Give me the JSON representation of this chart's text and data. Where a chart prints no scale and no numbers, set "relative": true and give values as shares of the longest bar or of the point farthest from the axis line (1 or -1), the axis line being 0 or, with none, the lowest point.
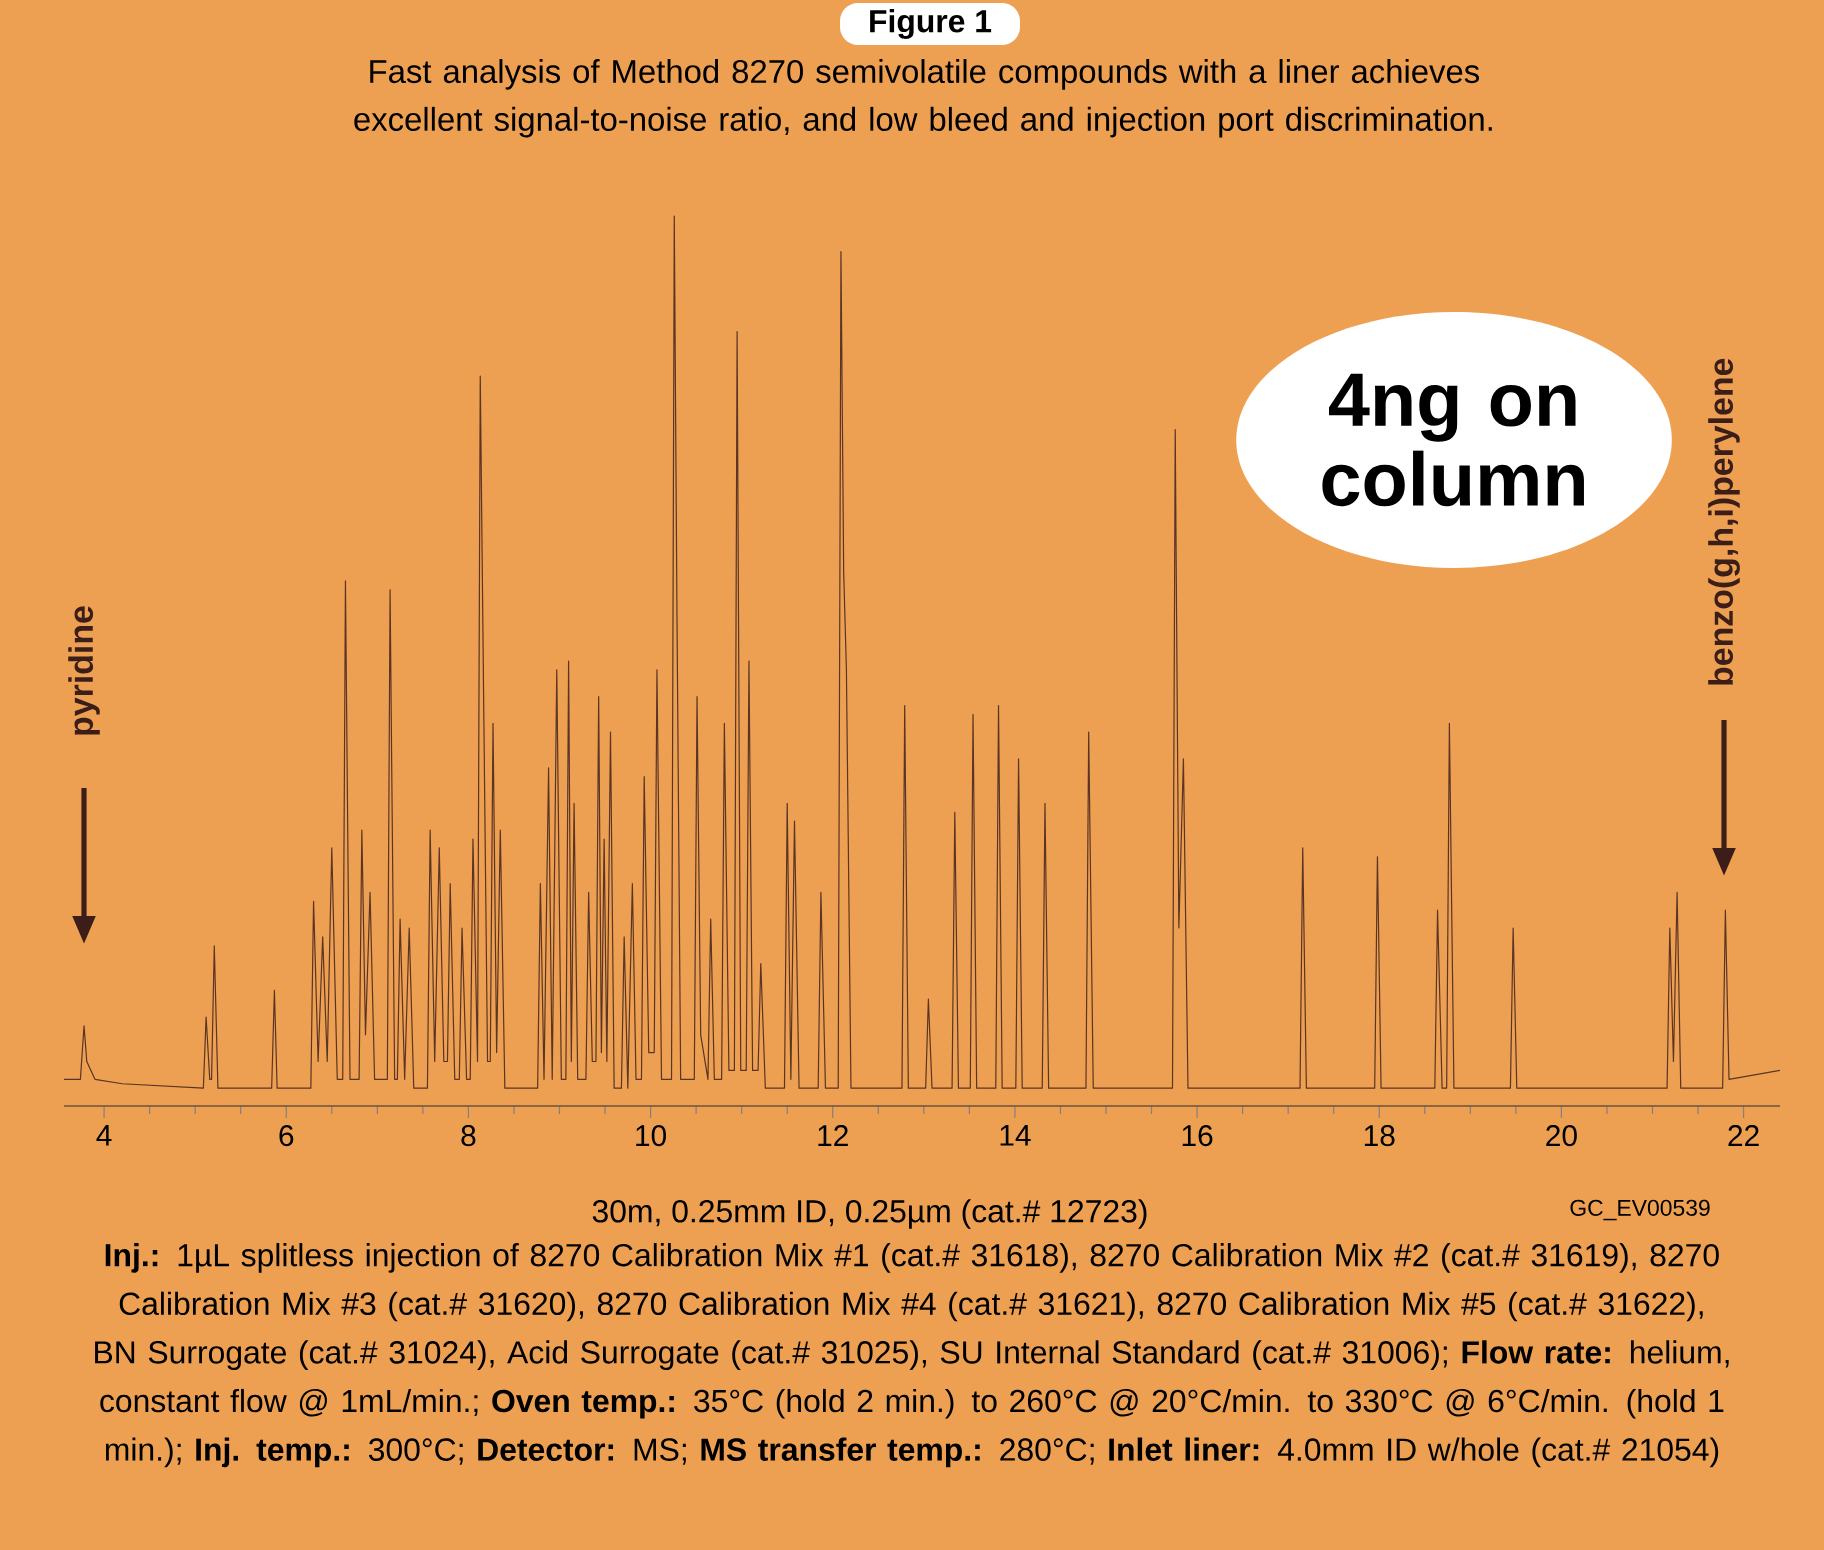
{
  "chart_data": {
    "type": "line",
    "relative": true,
    "title": "Figure 1",
    "subtitle": "Fast analysis of Method 8270 semivolatile compounds with a liner achieves excellent signal-to-noise ratio, and low bleed and injection port discrimination.",
    "xlim": [
      3.56,
      22.4
    ],
    "xticks": [
      4,
      6,
      8,
      10,
      12,
      14,
      16,
      18,
      20,
      22
    ],
    "grid": false,
    "marker": "none",
    "line_style": "solid",
    "x": [
      3.56,
      3.74,
      3.78,
      3.81,
      3.9,
      4.2,
      5.09,
      5.12,
      5.16,
      5.18,
      5.21,
      5.25,
      5.84,
      5.87,
      5.9,
      6.27,
      6.3,
      6.35,
      6.4,
      6.45,
      6.5,
      6.56,
      6.62,
      6.65,
      6.7,
      6.8,
      6.83,
      6.87,
      6.92,
      6.97,
      7.11,
      7.14,
      7.19,
      7.22,
      7.25,
      7.3,
      7.35,
      7.4,
      7.55,
      7.58,
      7.63,
      7.68,
      7.73,
      7.77,
      7.8,
      7.85,
      7.9,
      7.93,
      7.98,
      8.02,
      8.05,
      8.1,
      8.13,
      8.17,
      8.21,
      8.24,
      8.27,
      8.31,
      8.35,
      8.4,
      8.76,
      8.79,
      8.83,
      8.88,
      8.92,
      8.97,
      9.02,
      9.07,
      9.1,
      9.13,
      9.16,
      9.2,
      9.29,
      9.32,
      9.36,
      9.4,
      9.43,
      9.46,
      9.49,
      9.52,
      9.56,
      9.6,
      9.68,
      9.71,
      9.75,
      9.8,
      9.84,
      9.9,
      9.93,
      9.98,
      10.04,
      10.07,
      10.12,
      10.23,
      10.26,
      10.29,
      10.33,
      10.48,
      10.51,
      10.55,
      10.63,
      10.66,
      10.7,
      10.78,
      10.81,
      10.86,
      10.92,
      10.95,
      10.99,
      11.05,
      11.08,
      11.12,
      11.18,
      11.21,
      11.26,
      11.47,
      11.5,
      11.54,
      11.58,
      11.63,
      11.84,
      11.87,
      11.92,
      12.06,
      12.09,
      12.12,
      12.15,
      12.2,
      12.76,
      12.79,
      12.83,
      13.02,
      13.05,
      13.09,
      13.31,
      13.34,
      13.38,
      13.51,
      13.54,
      13.58,
      13.79,
      13.82,
      13.86,
      14.01,
      14.04,
      14.08,
      14.3,
      14.33,
      14.37,
      14.78,
      14.81,
      14.86,
      15.73,
      15.76,
      15.8,
      15.85,
      15.9,
      17.13,
      17.16,
      17.2,
      17.95,
      17.98,
      18.02,
      18.61,
      18.64,
      18.69,
      18.74,
      18.77,
      18.82,
      19.44,
      19.47,
      19.51,
      21.16,
      21.19,
      21.23,
      21.27,
      21.31,
      21.77,
      21.8,
      21.84,
      22.4
    ],
    "series": [
      {
        "color": "#5a3424",
        "values": [
          0.03,
          0.03,
          0.09,
          0.05,
          0.03,
          0.025,
          0.02,
          0.1,
          0.03,
          0.03,
          0.18,
          0.02,
          0.02,
          0.13,
          0.02,
          0.02,
          0.23,
          0.05,
          0.19,
          0.05,
          0.29,
          0.03,
          0.03,
          0.59,
          0.03,
          0.03,
          0.31,
          0.08,
          0.24,
          0.03,
          0.03,
          0.58,
          0.03,
          0.03,
          0.21,
          0.03,
          0.2,
          0.02,
          0.02,
          0.31,
          0.05,
          0.29,
          0.05,
          0.05,
          0.25,
          0.03,
          0.03,
          0.2,
          0.03,
          0.03,
          0.3,
          0.05,
          0.82,
          0.43,
          0.05,
          0.05,
          0.43,
          0.06,
          0.31,
          0.02,
          0.02,
          0.25,
          0.03,
          0.38,
          0.03,
          0.49,
          0.03,
          0.03,
          0.5,
          0.05,
          0.34,
          0.03,
          0.03,
          0.24,
          0.05,
          0.05,
          0.46,
          0.06,
          0.3,
          0.05,
          0.42,
          0.02,
          0.02,
          0.19,
          0.02,
          0.25,
          0.03,
          0.03,
          0.37,
          0.06,
          0.06,
          0.49,
          0.03,
          0.03,
          1.0,
          0.55,
          0.03,
          0.03,
          0.46,
          0.08,
          0.03,
          0.21,
          0.03,
          0.03,
          0.43,
          0.04,
          0.04,
          0.87,
          0.04,
          0.04,
          0.5,
          0.04,
          0.04,
          0.16,
          0.02,
          0.02,
          0.34,
          0.03,
          0.32,
          0.02,
          0.02,
          0.24,
          0.02,
          0.02,
          0.96,
          0.6,
          0.49,
          0.02,
          0.02,
          0.45,
          0.02,
          0.02,
          0.12,
          0.02,
          0.02,
          0.33,
          0.02,
          0.02,
          0.44,
          0.02,
          0.02,
          0.45,
          0.02,
          0.02,
          0.39,
          0.02,
          0.02,
          0.34,
          0.02,
          0.02,
          0.42,
          0.02,
          0.02,
          0.76,
          0.2,
          0.39,
          0.02,
          0.02,
          0.29,
          0.02,
          0.02,
          0.28,
          0.02,
          0.02,
          0.22,
          0.02,
          0.02,
          0.43,
          0.02,
          0.02,
          0.2,
          0.02,
          0.02,
          0.2,
          0.05,
          0.24,
          0.02,
          0.02,
          0.22,
          0.03,
          0.04
        ]
      }
    ],
    "annotations": [
      "pyridine",
      "benzo(g,h,i)perylene",
      "4ng on column",
      "30m, 0.25mm ID, 0.25µm (cat.# 12723)",
      "GC_EV00539",
      "**Inj.:** 1µL splitless injection of 8270 Calibration Mix #1 (cat.# 31618), 8270 Calibration Mix #2 (cat.# 31619), 8270 Calibration Mix #3 (cat.# 31620), 8270 Calibration Mix #4 (cat.# 31621), 8270 Calibration Mix #5 (cat.# 31622), BN Surrogate (cat.# 31024), Acid Surrogate (cat.# 31025), SU Internal Standard (cat.# 31006); **Flow rate:** helium, constant flow @ 1mL/min.; **Oven temp.:** 35°C (hold 2 min.) to 260°C @ 20°C/min. to 330°C @ 6°C/min. (hold 1 min.); **Inj. temp.:** 300°C; **Detector:** MS; **MS transfer temp.:** 280°C; **Inlet liner:** 4.0mm ID w/hole (cat.# 21054)"
    ]
  }
}
